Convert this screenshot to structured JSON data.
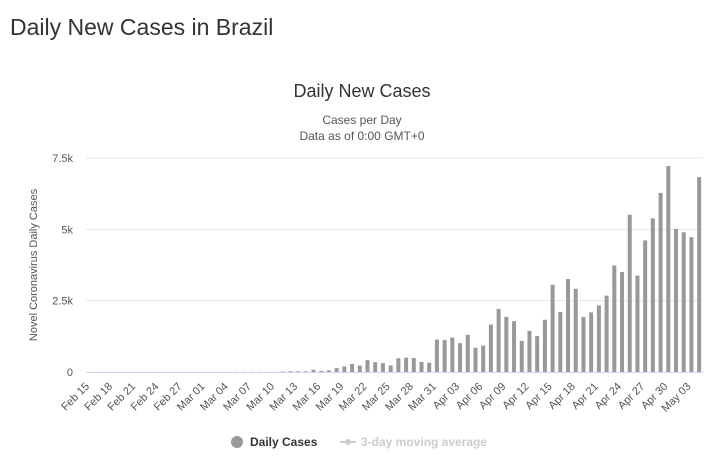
{
  "page": {
    "heading": "Daily New Cases in Brazil"
  },
  "chart_data": {
    "type": "bar",
    "title": "Daily New Cases",
    "subtitle_lines": [
      "Cases per Day",
      "Data as of 0:00 GMT+0"
    ],
    "xlabel": "",
    "ylabel": "Novel Coronavirus Daily Cases",
    "ylim": [
      0,
      7500
    ],
    "yticks": [
      0,
      2500,
      5000,
      7500
    ],
    "ytick_labels": [
      "0",
      "2.5k",
      "5k",
      "7.5k"
    ],
    "grid": true,
    "legend_position": "bottom",
    "colors": {
      "bar": "#999999",
      "moving_average": "#cccccc",
      "grid": "#e6e6e6",
      "axis": "#ccd6eb"
    },
    "categories": [
      "Feb 15",
      "Feb 16",
      "Feb 17",
      "Feb 18",
      "Feb 19",
      "Feb 20",
      "Feb 21",
      "Feb 22",
      "Feb 23",
      "Feb 24",
      "Feb 25",
      "Feb 26",
      "Feb 27",
      "Feb 28",
      "Feb 29",
      "Mar 01",
      "Mar 02",
      "Mar 03",
      "Mar 04",
      "Mar 05",
      "Mar 06",
      "Mar 07",
      "Mar 08",
      "Mar 09",
      "Mar 10",
      "Mar 11",
      "Mar 12",
      "Mar 13",
      "Mar 14",
      "Mar 15",
      "Mar 16",
      "Mar 17",
      "Mar 18",
      "Mar 19",
      "Mar 20",
      "Mar 21",
      "Mar 22",
      "Mar 23",
      "Mar 24",
      "Mar 25",
      "Mar 26",
      "Mar 27",
      "Mar 28",
      "Mar 29",
      "Mar 30",
      "Mar 31",
      "Apr 01",
      "Apr 02",
      "Apr 03",
      "Apr 04",
      "Apr 05",
      "Apr 06",
      "Apr 07",
      "Apr 08",
      "Apr 09",
      "Apr 10",
      "Apr 11",
      "Apr 12",
      "Apr 13",
      "Apr 14",
      "Apr 15",
      "Apr 16",
      "Apr 17",
      "Apr 18",
      "Apr 19",
      "Apr 20",
      "Apr 21",
      "Apr 22",
      "Apr 23",
      "Apr 24",
      "Apr 25",
      "Apr 26",
      "Apr 27",
      "Apr 28",
      "Apr 29",
      "Apr 30",
      "May 01",
      "May 02",
      "May 03",
      "May 04"
    ],
    "tick_labels_shown": [
      "Feb 15",
      "Feb 18",
      "Feb 21",
      "Feb 24",
      "Feb 27",
      "Mar 01",
      "Mar 04",
      "Mar 07",
      "Mar 10",
      "Mar 13",
      "Mar 16",
      "Mar 19",
      "Mar 22",
      "Mar 25",
      "Mar 28",
      "Mar 31",
      "Apr 03",
      "Apr 06",
      "Apr 09",
      "Apr 12",
      "Apr 15",
      "Apr 18",
      "Apr 21",
      "Apr 24",
      "Apr 27",
      "Apr 30",
      "May 03"
    ],
    "series": [
      {
        "name": "Daily Cases",
        "values": [
          0,
          0,
          0,
          0,
          0,
          0,
          0,
          0,
          0,
          0,
          1,
          0,
          0,
          0,
          1,
          0,
          0,
          0,
          1,
          5,
          5,
          5,
          6,
          0,
          6,
          18,
          25,
          21,
          23,
          79,
          34,
          57,
          137,
          193,
          283,
          224,
          418,
          345,
          310,
          232,
          482,
          502,
          487,
          352,
          323,
          1138,
          1119,
          1208,
          1012,
          1304,
          852,
          926,
          1661,
          2210,
          1930,
          1781,
          1089,
          1442,
          1261,
          1832,
          3058,
          2105,
          3257,
          2917,
          1927,
          2089,
          2336,
          2678,
          3735,
          3503,
          5514,
          3379,
          4613,
          5385,
          6276,
          7218,
          5015,
          4898,
          4726,
          6835
        ]
      },
      {
        "name": "3-day moving average"
      }
    ],
    "legend": [
      {
        "label": "Daily Cases",
        "color": "#999999",
        "active": true
      },
      {
        "label": "3-day moving average",
        "color": "#cccccc",
        "active": false
      }
    ]
  }
}
